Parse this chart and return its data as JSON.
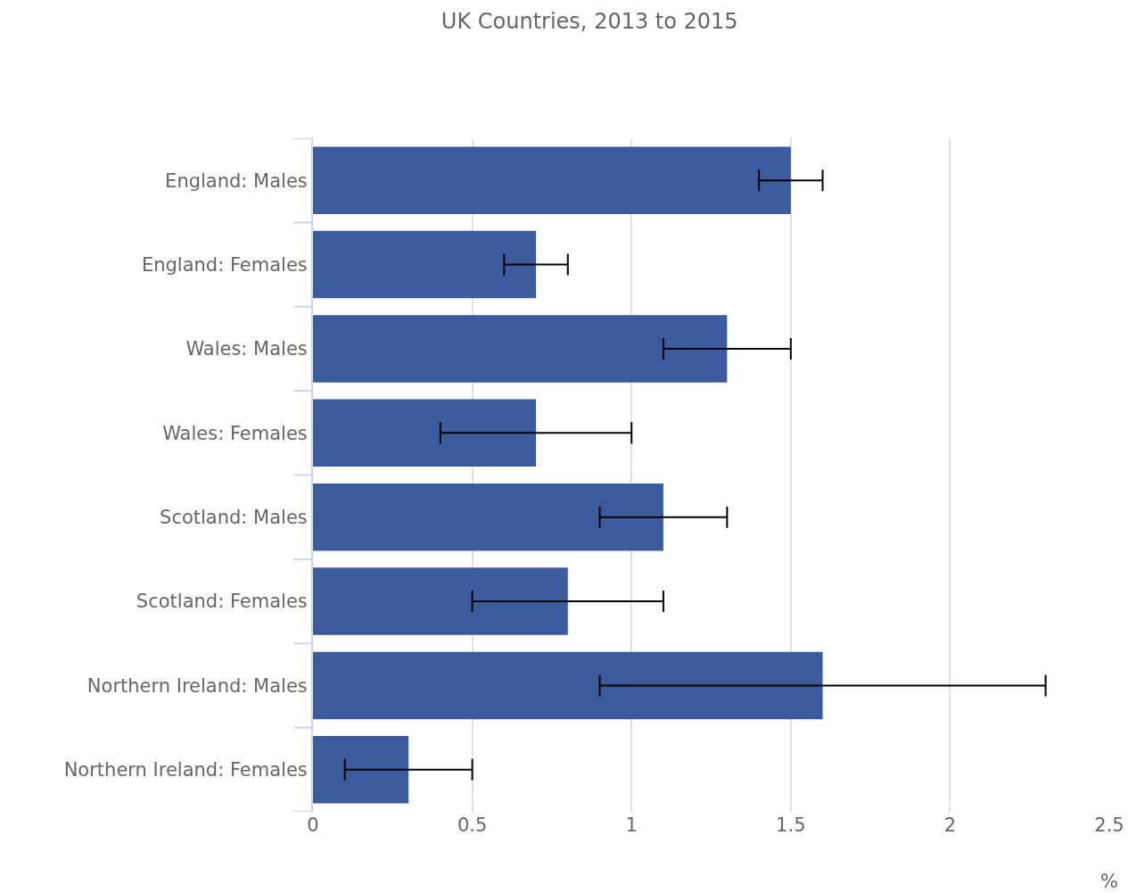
{
  "chart_data": {
    "type": "bar",
    "title": "UK Countries, 2013 to 2015",
    "orientation": "horizontal",
    "xlabel": "%",
    "categories": [
      "England: Males",
      "England: Females",
      "Wales: Males",
      "Wales: Females",
      "Scotland: Males",
      "Scotland: Females",
      "Northern Ireland: Males",
      "Northern Ireland: Females"
    ],
    "values": [
      1.5,
      0.7,
      1.3,
      0.7,
      1.1,
      0.8,
      1.6,
      0.3
    ],
    "errors": [
      [
        1.4,
        1.6
      ],
      [
        0.6,
        0.8
      ],
      [
        1.1,
        1.5
      ],
      [
        0.4,
        1.0
      ],
      [
        0.9,
        1.3
      ],
      [
        0.5,
        1.1
      ],
      [
        0.9,
        2.3
      ],
      [
        0.1,
        0.5
      ]
    ],
    "color": "#3c5a9e",
    "xlim": [
      0,
      2.5
    ],
    "xticks": [
      0,
      0.5,
      1,
      1.5,
      2,
      2.5
    ],
    "grid": "x"
  }
}
